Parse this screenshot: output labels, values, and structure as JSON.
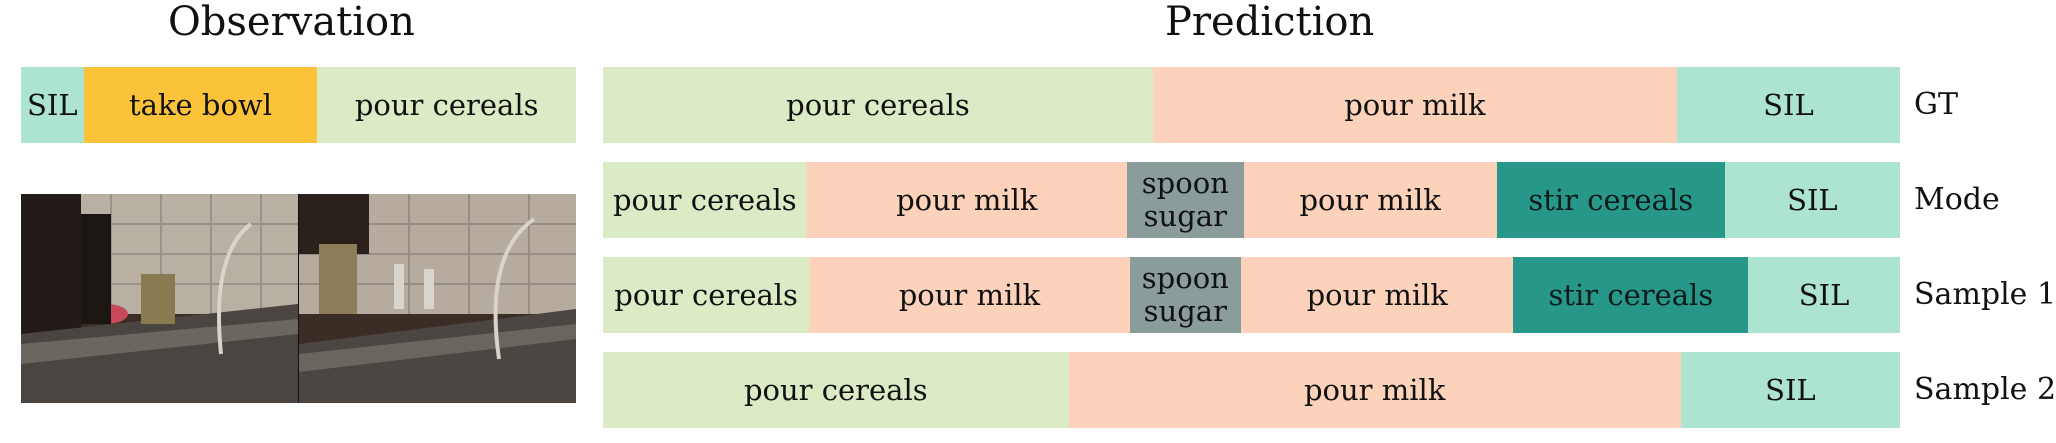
{
  "titles": {
    "observation": "Observation",
    "prediction": "Prediction"
  },
  "colors": {
    "SIL": "#ace3d1",
    "take bowl": "#fbc33a",
    "pour cereals": "#dbebc6",
    "pour milk": "#fcd2ba",
    "spoon sugar": "#8a9d9a",
    "stir cereals": "#27978a"
  },
  "observation": {
    "segments": [
      {
        "label": "SIL",
        "action": "SIL",
        "fraction": 0.113
      },
      {
        "label": "take bowl",
        "action": "take bowl",
        "fraction": 0.421
      },
      {
        "label": "pour cereals",
        "action": "pour cereals",
        "fraction": 0.466
      }
    ],
    "frames": [
      "kitchen-frame-1",
      "kitchen-frame-2"
    ]
  },
  "rows": [
    {
      "label": "GT",
      "segments": [
        {
          "label": "pour cereals",
          "action": "pour cereals",
          "fraction": 0.424
        },
        {
          "label": "pour milk",
          "action": "pour milk",
          "fraction": 0.404
        },
        {
          "label": "SIL",
          "action": "SIL",
          "fraction": 0.172
        }
      ]
    },
    {
      "label": "Mode",
      "segments": [
        {
          "label": "pour cereals",
          "action": "pour cereals",
          "fraction": 0.157
        },
        {
          "label": "pour milk",
          "action": "pour milk",
          "fraction": 0.247
        },
        {
          "label": "spoon\nsugar",
          "action": "spoon sugar",
          "fraction": 0.09
        },
        {
          "label": "pour milk",
          "action": "pour milk",
          "fraction": 0.195
        },
        {
          "label": "stir cereals",
          "action": "stir cereals",
          "fraction": 0.176
        },
        {
          "label": "SIL",
          "action": "SIL",
          "fraction": 0.135
        }
      ]
    },
    {
      "label": "Sample 1",
      "segments": [
        {
          "label": "pour cereals",
          "action": "pour cereals",
          "fraction": 0.159
        },
        {
          "label": "pour milk",
          "action": "pour milk",
          "fraction": 0.247
        },
        {
          "label": "spoon\nsugar",
          "action": "spoon sugar",
          "fraction": 0.086
        },
        {
          "label": "pour milk",
          "action": "pour milk",
          "fraction": 0.21
        },
        {
          "label": "stir cereals",
          "action": "stir cereals",
          "fraction": 0.181
        },
        {
          "label": "SIL",
          "action": "SIL",
          "fraction": 0.117
        }
      ]
    },
    {
      "label": "Sample 2",
      "segments": [
        {
          "label": "pour cereals",
          "action": "pour cereals",
          "fraction": 0.359
        },
        {
          "label": "pour milk",
          "action": "pour milk",
          "fraction": 0.472
        },
        {
          "label": "SIL",
          "action": "SIL",
          "fraction": 0.169
        }
      ]
    }
  ]
}
